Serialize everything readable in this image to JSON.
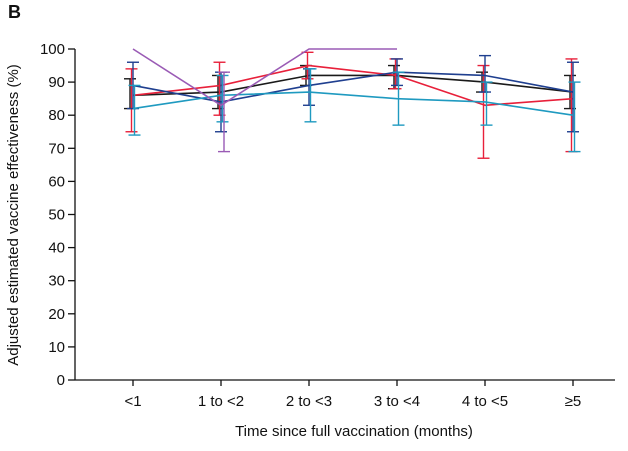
{
  "panel_label": "B",
  "chart_data": {
    "type": "line",
    "title": "",
    "xlabel": "Time since full vaccination (months)",
    "ylabel": "Adjusted estimated vaccine effectiveness (%)",
    "categories": [
      "<1",
      "1 to <2",
      "2 to <3",
      "3 to <4",
      "4 to <5",
      "≥5"
    ],
    "ylim": [
      0,
      100
    ],
    "yticks": [
      0,
      10,
      20,
      30,
      40,
      50,
      60,
      70,
      80,
      90,
      100
    ],
    "grid": false,
    "series": [
      {
        "color": "#1a1a1a",
        "values": [
          86,
          87,
          92,
          92,
          90,
          87
        ],
        "lower": [
          82,
          82,
          89,
          88,
          87,
          82
        ],
        "upper": [
          91,
          92,
          95,
          95,
          93,
          92
        ]
      },
      {
        "color": "#e8203a",
        "values": [
          86,
          89,
          95,
          92,
          83,
          85
        ],
        "lower": [
          75,
          80,
          91,
          88,
          67,
          69
        ],
        "upper": [
          94,
          96,
          99,
          97,
          95,
          97
        ]
      },
      {
        "color": "#1f3f8f",
        "values": [
          89,
          84,
          89,
          93,
          92,
          87
        ],
        "lower": [
          82,
          75,
          83,
          89,
          87,
          75
        ],
        "upper": [
          96,
          93,
          94,
          97,
          98,
          96
        ]
      },
      {
        "color": "#1f9ac0",
        "values": [
          82,
          86,
          87,
          85,
          84,
          80
        ],
        "lower": [
          74,
          78,
          78,
          77,
          77,
          69
        ],
        "upper": [
          89,
          92,
          94,
          93,
          90,
          90
        ]
      },
      {
        "color": "#9a5bb5",
        "values": [
          100,
          83,
          100,
          100,
          null,
          null
        ],
        "lower": [
          null,
          69,
          null,
          null,
          null,
          null
        ],
        "upper": [
          null,
          93,
          null,
          null,
          null,
          null
        ]
      }
    ]
  }
}
